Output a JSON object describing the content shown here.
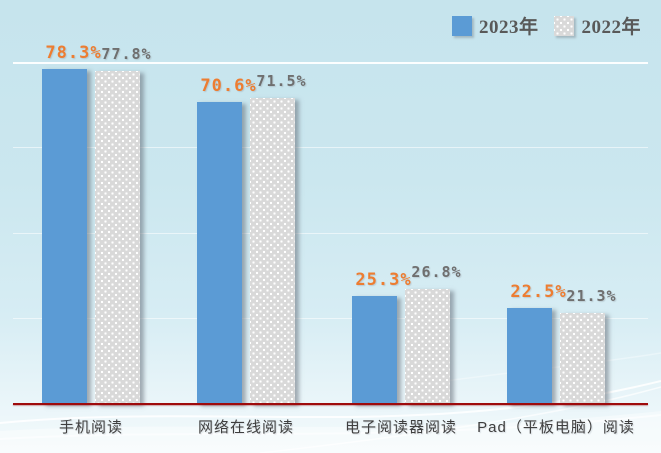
{
  "chart_data": {
    "type": "bar",
    "title": "",
    "categories": [
      "手机阅读",
      "网络在线阅读",
      "电子阅读器阅读",
      "Pad（平板电脑）阅读"
    ],
    "series": [
      {
        "name": "2023年",
        "values": [
          78.3,
          70.6,
          25.3,
          22.5
        ],
        "color": "#5b9bd5",
        "pattern": "solid",
        "label_color": "#ed7d31"
      },
      {
        "name": "2022年",
        "values": [
          77.8,
          71.5,
          26.8,
          21.3
        ],
        "color": "#d9d9d9",
        "pattern": "white-dots",
        "label_color": "#6f6f6f"
      }
    ],
    "value_labels": [
      "78.3%",
      "77.8%",
      "70.6%",
      "71.5%",
      "25.3%",
      "26.8%",
      "22.5%",
      "21.3%"
    ],
    "value_label_suffix": "%",
    "xlabel": "",
    "ylabel": "",
    "ylim": [
      0,
      85
    ],
    "gridlines": [
      20,
      40,
      60,
      80
    ],
    "grid": "on",
    "legend_position": "top-right",
    "axis_line_color": "#9e0b0c",
    "background_color": "#c9e6ee"
  }
}
